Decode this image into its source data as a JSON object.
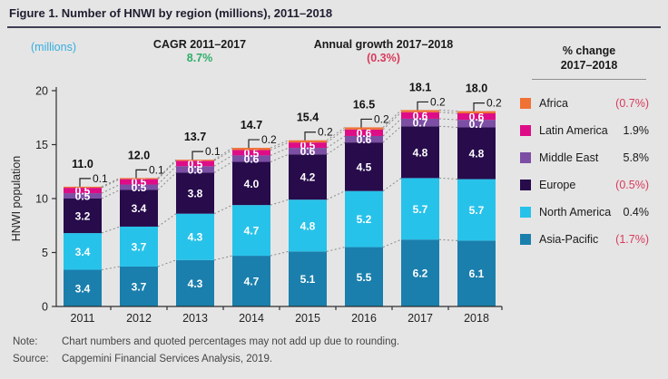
{
  "title": "Figure 1. Number of HNWI by region (millions), 2011–2018",
  "annotations": {
    "unit_label": "(millions)",
    "cagr_label": "CAGR 2011–2017",
    "cagr_value": "8.7%",
    "growth_label": "Annual growth 2017–2018",
    "growth_value": "(0.3%)"
  },
  "chart_data": {
    "type": "bar",
    "stacked": true,
    "title": "Number of HNWI by region (millions), 2011–2018",
    "xlabel": "",
    "ylabel": "HNWI population",
    "ylim": [
      0,
      20
    ],
    "yticks": [
      0,
      5,
      10,
      15,
      20
    ],
    "grid": false,
    "legend_position": "right",
    "categories": [
      "2011",
      "2012",
      "2013",
      "2014",
      "2015",
      "2016",
      "2017",
      "2018"
    ],
    "series": [
      {
        "name": "Asia-Pacific",
        "key": "asia-pacific",
        "color": "#1A7FAD",
        "label_position": "inside",
        "values": [
          3.4,
          3.7,
          4.3,
          4.7,
          5.1,
          5.5,
          6.2,
          6.1
        ]
      },
      {
        "name": "North America",
        "key": "north-america",
        "color": "#27C2EA",
        "label_position": "inside",
        "values": [
          3.4,
          3.7,
          4.3,
          4.7,
          4.8,
          5.2,
          5.7,
          5.7
        ]
      },
      {
        "name": "Europe",
        "key": "europe",
        "color": "#270B4B",
        "label_position": "inside",
        "values": [
          3.2,
          3.4,
          3.8,
          4.0,
          4.2,
          4.5,
          4.8,
          4.8
        ]
      },
      {
        "name": "Middle East",
        "key": "middle-east",
        "color": "#7C4FA4",
        "label_position": "inside",
        "values": [
          0.5,
          0.5,
          0.6,
          0.6,
          0.6,
          0.6,
          0.7,
          0.7
        ]
      },
      {
        "name": "Latin America",
        "key": "latin-america",
        "color": "#DE0D87",
        "label_position": "inside",
        "values": [
          0.5,
          0.5,
          0.5,
          0.5,
          0.5,
          0.6,
          0.6,
          0.6
        ]
      },
      {
        "name": "Africa",
        "key": "africa",
        "color": "#EF7134",
        "label_position": "callout",
        "values": [
          0.1,
          0.1,
          0.1,
          0.2,
          0.2,
          0.2,
          0.2,
          0.2
        ]
      }
    ],
    "totals": [
      "11.0",
      "12.0",
      "13.7",
      "14.7",
      "15.4",
      "16.5",
      "18.1",
      "18.0"
    ]
  },
  "legend": {
    "header_line1": "% change",
    "header_line2": "2017–2018",
    "items": [
      {
        "label": "Africa",
        "change": "(0.7%)",
        "negative": true,
        "color": "#EF7134"
      },
      {
        "label": "Latin America",
        "change": "1.9%",
        "negative": false,
        "color": "#DE0D87"
      },
      {
        "label": "Middle East",
        "change": "5.8%",
        "negative": false,
        "color": "#7C4FA4"
      },
      {
        "label": "Europe",
        "change": "(0.5%)",
        "negative": true,
        "color": "#270B4B"
      },
      {
        "label": "North America",
        "change": "0.4%",
        "negative": false,
        "color": "#27C2EA"
      },
      {
        "label": "Asia-Pacific",
        "change": "(1.7%)",
        "negative": true,
        "color": "#1A7FAD"
      }
    ]
  },
  "footer": {
    "note_label": "Note:",
    "note_text": "Chart numbers and quoted percentages may not add up due to rounding.",
    "source_label": "Source:",
    "source_text": "Capgemini Financial Services Analysis, 2019."
  },
  "colors": {
    "background": "#E6E5E5",
    "title_text": "#1E1E30",
    "positive_green": "#2FAE6B",
    "negative_red": "#D83A5C",
    "unit_cyan": "#33AFE0",
    "axis": "#2F2F2F",
    "connector_gray": "#8A8A8A"
  }
}
